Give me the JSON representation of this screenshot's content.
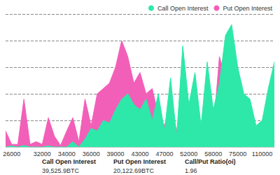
{
  "chart_data": {
    "type": "area",
    "categories": [
      null,
      "26000",
      null,
      null,
      null,
      null,
      "32000",
      null,
      null,
      null,
      "34000",
      null,
      null,
      null,
      "36000",
      null,
      null,
      null,
      "39000",
      null,
      null,
      null,
      "43000",
      null,
      null,
      null,
      "47000",
      null,
      null,
      null,
      "52000",
      null,
      null,
      null,
      "58000",
      null,
      null,
      null,
      "75000",
      null,
      null,
      null,
      "110000",
      null,
      null
    ],
    "series": [
      {
        "name": "Call Open Interest",
        "color": "#2de8a9",
        "values": [
          0,
          20,
          0,
          30,
          0,
          0,
          0,
          20,
          0,
          0,
          0,
          100,
          0,
          150,
          350,
          300,
          500,
          450,
          700,
          900,
          1000,
          800,
          700,
          900,
          500,
          1000,
          300,
          1300,
          200,
          1900,
          800,
          1400,
          400,
          1600,
          700,
          1200,
          2100,
          2300,
          1500,
          1000,
          900,
          400,
          500,
          1100,
          1600
        ]
      },
      {
        "name": "Put Open Interest",
        "color": "#f25fb8",
        "values": [
          300,
          50,
          50,
          900,
          50,
          100,
          50,
          550,
          200,
          30,
          300,
          550,
          100,
          900,
          400,
          1000,
          1100,
          1200,
          1500,
          2000,
          1700,
          1200,
          1400,
          1000,
          1100,
          600,
          400,
          800,
          300,
          900,
          500,
          700,
          300,
          600,
          300,
          1700,
          1300,
          900,
          800,
          300,
          200,
          100,
          50,
          500,
          100
        ]
      }
    ],
    "ylim": [
      0,
      2500
    ],
    "yticks": [
      0,
      500,
      1000,
      1500,
      2000,
      2500
    ],
    "grid": true,
    "legend": "top-right",
    "tick_labels": "x",
    "stacked": false,
    "summary": [
      {
        "label": "Call Open Interest",
        "value": "39,525.9BTC"
      },
      {
        "label": "Put Open Interest",
        "value": "20,122.69BTC"
      },
      {
        "label": "Call/Put Ratio(oi)",
        "value": "1.96"
      }
    ]
  }
}
